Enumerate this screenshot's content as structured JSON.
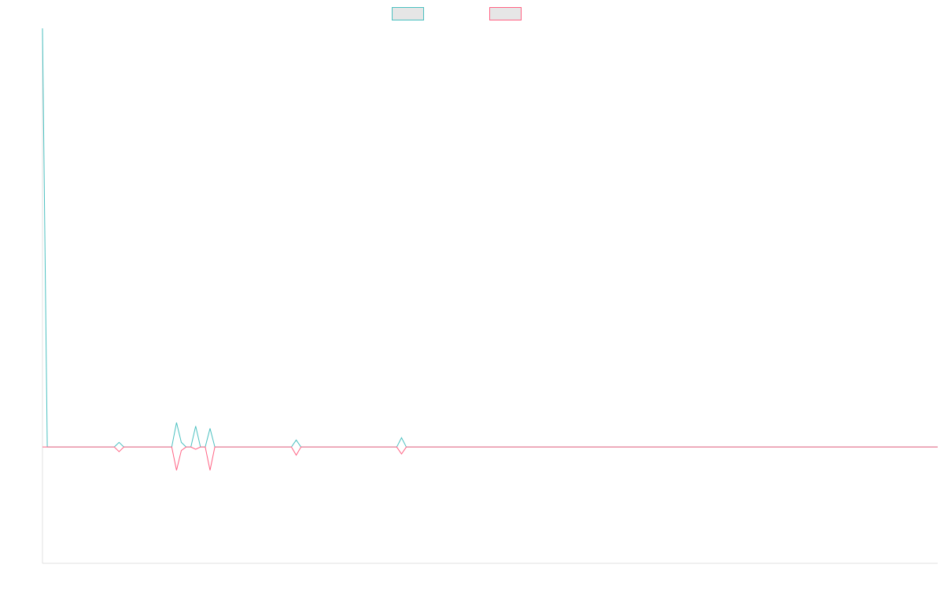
{
  "chart_data": {
    "type": "line",
    "title": "",
    "xlabel": "",
    "ylabel": "",
    "x": [
      0,
      1,
      2,
      3,
      4,
      5,
      6,
      7,
      8,
      9,
      10,
      11,
      12,
      13,
      14,
      15,
      16,
      17,
      18,
      19,
      20,
      21,
      22,
      23,
      24,
      25,
      26,
      27,
      28,
      29,
      30,
      31,
      32,
      33,
      34,
      35,
      36,
      37,
      38,
      39,
      40,
      41,
      42,
      43,
      44,
      45,
      46,
      47,
      48,
      49,
      50,
      51,
      52,
      53,
      54,
      55,
      56,
      57,
      58,
      59,
      60,
      61,
      62,
      63,
      64,
      65,
      66,
      67,
      68,
      69,
      70,
      71,
      72,
      73,
      74,
      75,
      76,
      77,
      78,
      79,
      80,
      81,
      82,
      83,
      84,
      85,
      86,
      87,
      88,
      89,
      90,
      91,
      92,
      93,
      94,
      95,
      96,
      97,
      98,
      99,
      100,
      101,
      102,
      103,
      104,
      105,
      106,
      107,
      108,
      109,
      110,
      111,
      112,
      113,
      114,
      115,
      116,
      117,
      118,
      119,
      120,
      121,
      122,
      123,
      124,
      125,
      126,
      127,
      128,
      129,
      130,
      131,
      132,
      133,
      134,
      135,
      136,
      137,
      138,
      139,
      140,
      141,
      142,
      143,
      144,
      145,
      146,
      147,
      148,
      149,
      150,
      151,
      152,
      153,
      154,
      155,
      156,
      157,
      158,
      159,
      160,
      161,
      162,
      163,
      164,
      165,
      166,
      167,
      168,
      169,
      170,
      171,
      172,
      173,
      174,
      175,
      176,
      177,
      178,
      179,
      180,
      181,
      182,
      183,
      184,
      185,
      186,
      187
    ],
    "ylim": [
      -100,
      360
    ],
    "grid": false,
    "legend_position": "top-center",
    "series": [
      {
        "color": "#4bc0c0",
        "values": [
          360,
          0,
          0,
          0,
          0,
          0,
          0,
          0,
          0,
          0,
          0,
          0,
          0,
          0,
          0,
          0,
          4,
          0,
          0,
          0,
          0,
          0,
          0,
          0,
          0,
          0,
          0,
          0,
          21,
          4,
          0,
          0,
          18,
          0,
          0,
          16,
          0,
          0,
          0,
          0,
          0,
          0,
          0,
          0,
          0,
          0,
          0,
          0,
          0,
          0,
          0,
          0,
          0,
          6,
          0,
          0,
          0,
          0,
          0,
          0,
          0,
          0,
          0,
          0,
          0,
          0,
          0,
          0,
          0,
          0,
          0,
          0,
          0,
          0,
          0,
          8,
          0,
          0,
          0,
          0,
          0,
          0,
          0,
          0,
          0,
          0,
          0,
          0,
          0,
          0,
          0,
          0,
          0,
          0,
          0,
          0,
          0,
          0,
          0,
          0,
          0,
          0,
          0,
          0,
          0,
          0,
          0,
          0,
          0,
          0,
          0,
          0,
          0,
          0,
          0,
          0,
          0,
          0,
          0,
          0,
          0,
          0,
          0,
          0,
          0,
          0,
          0,
          0,
          0,
          0,
          0,
          0,
          0,
          0,
          0,
          0,
          0,
          0,
          0,
          0,
          0,
          0,
          0,
          0,
          0,
          0,
          0,
          0,
          0,
          0,
          0,
          0,
          0,
          0,
          0,
          0,
          0,
          0,
          0,
          0,
          0,
          0,
          0,
          0,
          0,
          0,
          0,
          0,
          0,
          0,
          0,
          0,
          0,
          0,
          0,
          0,
          0,
          0,
          0,
          0,
          0,
          0,
          0,
          0,
          0,
          0,
          0,
          0
        ]
      },
      {
        "color": "#ff6384",
        "values": [
          0,
          0,
          0,
          0,
          0,
          0,
          0,
          0,
          0,
          0,
          0,
          0,
          0,
          0,
          0,
          0,
          -4,
          0,
          0,
          0,
          0,
          0,
          0,
          0,
          0,
          0,
          0,
          0,
          -20,
          -3,
          0,
          0,
          -2,
          0,
          0,
          -20,
          0,
          0,
          0,
          0,
          0,
          0,
          0,
          0,
          0,
          0,
          0,
          0,
          0,
          0,
          0,
          0,
          0,
          -7,
          0,
          0,
          0,
          0,
          0,
          0,
          0,
          0,
          0,
          0,
          0,
          0,
          0,
          0,
          0,
          0,
          0,
          0,
          0,
          0,
          0,
          -6,
          0,
          0,
          0,
          0,
          0,
          0,
          0,
          0,
          0,
          0,
          0,
          0,
          0,
          0,
          0,
          0,
          0,
          0,
          0,
          0,
          0,
          0,
          0,
          0,
          0,
          0,
          0,
          0,
          0,
          0,
          0,
          0,
          0,
          0,
          0,
          0,
          0,
          0,
          0,
          0,
          0,
          0,
          0,
          0,
          0,
          0,
          0,
          0,
          0,
          0,
          0,
          0,
          0,
          0,
          0,
          0,
          0,
          0,
          0,
          0,
          0,
          0,
          0,
          0,
          0,
          0,
          0,
          0,
          0,
          0,
          0,
          0,
          0,
          0,
          0,
          0,
          0,
          0,
          0,
          0,
          0,
          0,
          0,
          0,
          0,
          0,
          0,
          0,
          0,
          0,
          0,
          0,
          0,
          0,
          0,
          0,
          0,
          0,
          0,
          0,
          0,
          0,
          0,
          0,
          0,
          0,
          0,
          0,
          0,
          0,
          0,
          0
        ]
      }
    ]
  }
}
